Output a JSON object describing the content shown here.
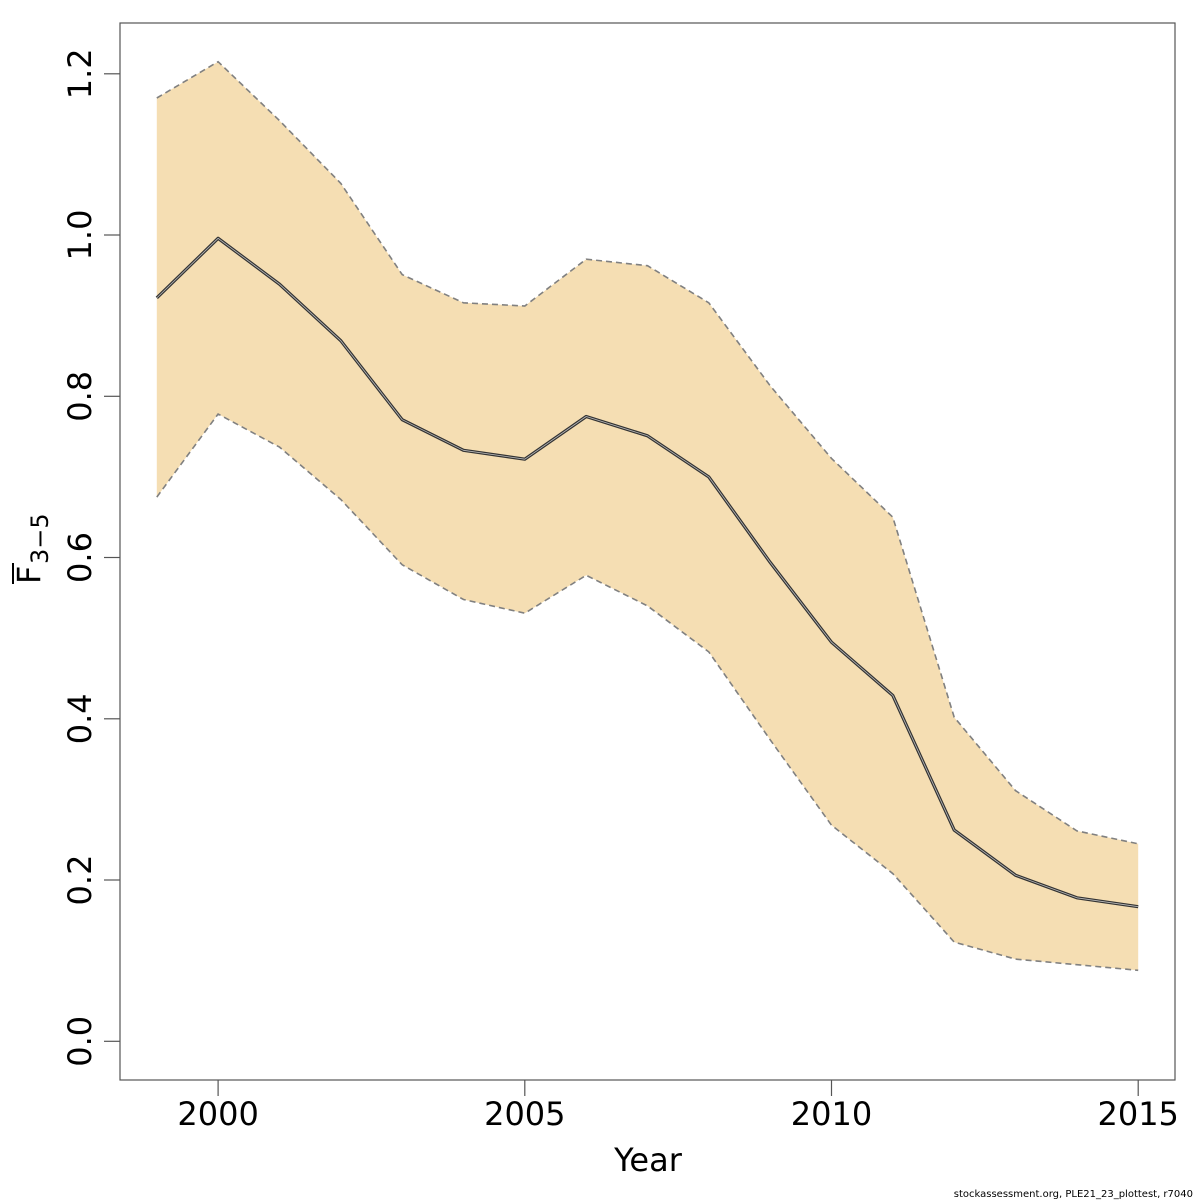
{
  "chart_data": {
    "type": "line",
    "title": "",
    "xlabel": "Year",
    "ylabel": {
      "main": "F",
      "subscript": "3−5",
      "overbar": true
    },
    "xlim": [
      1998.4,
      2015.6
    ],
    "ylim": [
      -0.048,
      1.263
    ],
    "x_ticks": [
      2000,
      2005,
      2010,
      2015
    ],
    "x_tick_labels": [
      "2000",
      "2005",
      "2010",
      "2015"
    ],
    "y_ticks": [
      0.0,
      0.2,
      0.4,
      0.6,
      0.8,
      1.0,
      1.2
    ],
    "y_tick_labels": [
      "0.0",
      "0.2",
      "0.4",
      "0.6",
      "0.8",
      "1.0",
      "1.2"
    ],
    "grid": false,
    "x": [
      1999,
      2000,
      2001,
      2002,
      2003,
      2004,
      2005,
      2006,
      2007,
      2008,
      2009,
      2010,
      2011,
      2012,
      2013,
      2014,
      2015
    ],
    "series": [
      {
        "role": "estimate",
        "values": [
          0.922,
          0.996,
          0.939,
          0.869,
          0.771,
          0.733,
          0.722,
          0.775,
          0.751,
          0.7,
          0.594,
          0.495,
          0.429,
          0.262,
          0.206,
          0.178,
          0.167
        ]
      },
      {
        "role": "upper",
        "values": [
          1.17,
          1.215,
          1.142,
          1.064,
          0.951,
          0.916,
          0.912,
          0.97,
          0.962,
          0.916,
          0.813,
          0.723,
          0.65,
          0.402,
          0.311,
          0.261,
          0.245
        ]
      },
      {
        "role": "lower",
        "values": [
          0.675,
          0.778,
          0.737,
          0.672,
          0.591,
          0.548,
          0.531,
          0.578,
          0.54,
          0.483,
          0.374,
          0.268,
          0.208,
          0.123,
          0.102,
          0.095,
          0.088
        ]
      }
    ],
    "colors": {
      "band_fill": "#f5deb3",
      "estimate_line": "#000000",
      "bound_line": "#808080",
      "frame": "#555555"
    },
    "footer": "stockassessment.org, PLE21_23_plottest, r7040"
  }
}
